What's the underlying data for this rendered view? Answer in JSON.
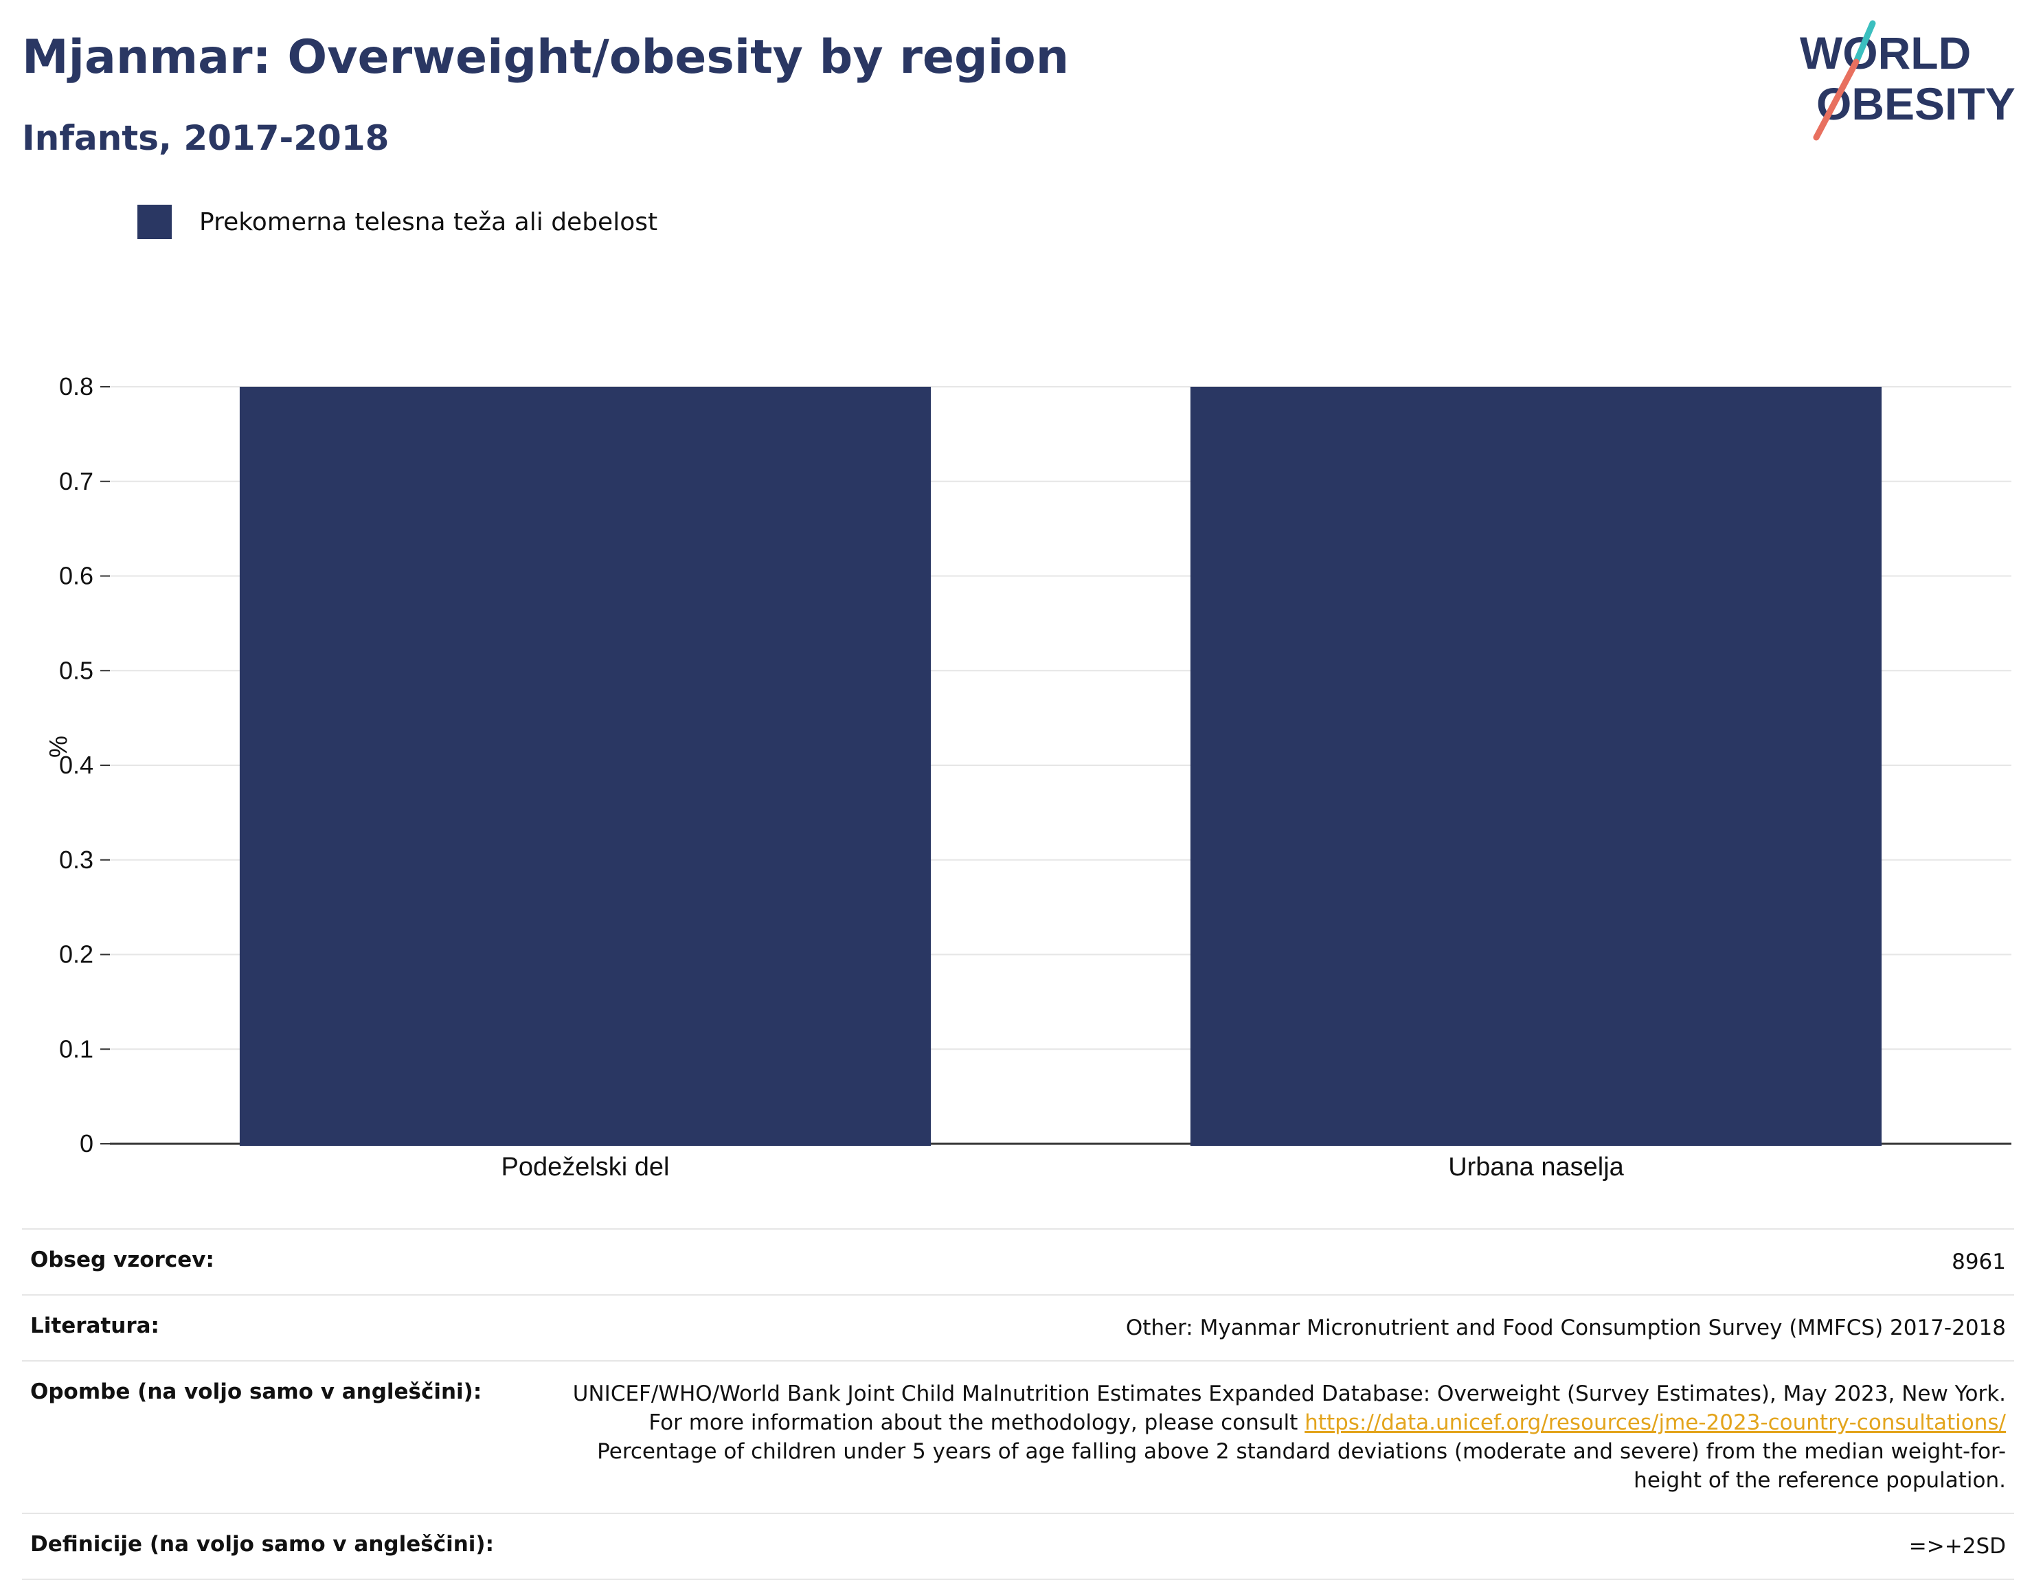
{
  "header": {
    "title": "Mjanmar: Overweight/obesity by region",
    "subtitle": "Infants, 2017-2018"
  },
  "logo": {
    "line1": "WORLD",
    "line2": "OBESITY",
    "colors": {
      "text": "#2a3763",
      "slash_top": "#3bbfbf",
      "slash_bottom": "#e8705f"
    }
  },
  "colors": {
    "bar": "#2a3763",
    "grid": "#e6e6e6",
    "axis": "#333333",
    "link": "#e3a41c"
  },
  "chart_data": {
    "type": "bar",
    "categories": [
      "Podeželski del",
      "Urbana naselja"
    ],
    "series": [
      {
        "name": "Prekomerna telesna teža ali debelost",
        "values": [
          0.8,
          0.8
        ]
      }
    ],
    "ylabel": "%",
    "xlabel": "",
    "ylim": [
      0,
      0.8
    ],
    "yticks": [
      "0",
      "0.1",
      "0.2",
      "0.3",
      "0.4",
      "0.5",
      "0.6",
      "0.7",
      "0.8"
    ],
    "grid": true,
    "legend_position": "top-left"
  },
  "table": {
    "rows": [
      {
        "key": "Obseg vzorcev:",
        "value": "8961"
      },
      {
        "key": "Literatura:",
        "value": "Other: Myanmar Micronutrient and Food Consumption Survey (MMFCS) 2017-2018"
      },
      {
        "key": "Opombe (na voljo samo v angleščini):",
        "value_part1": "UNICEF/WHO/World Bank Joint Child Malnutrition Estimates Expanded Database: Overweight (Survey Estimates), May 2023, New York. For more information about the methodology, please consult ",
        "link": "https://data.unicef.org/resources/jme-2023-country-consultations/",
        "value_part2": " Percentage of children under 5 years of age falling above 2 standard deviations (moderate and severe) from the median weight-for-height of the reference population."
      },
      {
        "key": "Definicije (na voljo samo v angleščini):",
        "value": "=>+2SD"
      }
    ]
  }
}
